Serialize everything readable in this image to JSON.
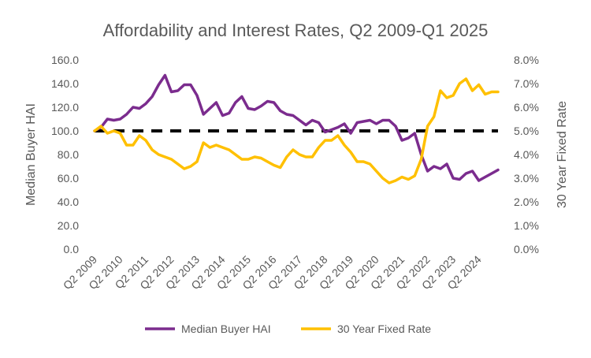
{
  "chart_data": {
    "type": "line",
    "title": "Affordability and Interest Rates, Q2 2009-Q1 2025",
    "ylabel": "Median Buyer HAI",
    "y2label": "30 Year Fixed Rate",
    "ylim": [
      0,
      160
    ],
    "y2lim": [
      0,
      8
    ],
    "yticks": [
      "0.0",
      "20.0",
      "40.0",
      "60.0",
      "80.0",
      "100.0",
      "120.0",
      "140.0",
      "160.0"
    ],
    "y2ticks": [
      "0.0%",
      "1.0%",
      "2.0%",
      "3.0%",
      "4.0%",
      "5.0%",
      "6.0%",
      "7.0%",
      "8.0%"
    ],
    "xticks": [
      "Q2 2009",
      "Q2 2010",
      "Q2 2011",
      "Q2 2012",
      "Q2 2013",
      "Q2 2014",
      "Q2 2015",
      "Q2 2016",
      "Q2 2017",
      "Q2 2018",
      "Q2 2019",
      "Q2 2020",
      "Q2 2021",
      "Q2 2022",
      "Q2 2023",
      "Q2 2024"
    ],
    "grid": false,
    "legend_position": "bottom",
    "reference_line": 100,
    "series": [
      {
        "name": "Median Buyer HAI",
        "axis": "left",
        "color": "#7B2C8E",
        "values": [
          100,
          103,
          110,
          109,
          110,
          114,
          120,
          119,
          123,
          129,
          139,
          147,
          133,
          134,
          139,
          139,
          130,
          114,
          119,
          124,
          113,
          115,
          124,
          129,
          119,
          118,
          121,
          125,
          124,
          117,
          114,
          113,
          109,
          105,
          109,
          107,
          99,
          101,
          103,
          106,
          98,
          107,
          108,
          109,
          106,
          109,
          109,
          104,
          92,
          94,
          98,
          80,
          66,
          70,
          68,
          72,
          60,
          59,
          64,
          66,
          58,
          61,
          64,
          67
        ]
      },
      {
        "name": "30 Year Fixed Rate",
        "axis": "right",
        "color": "#FFC000",
        "values": [
          5.0,
          5.2,
          4.9,
          5.0,
          4.9,
          4.4,
          4.4,
          4.8,
          4.6,
          4.2,
          4.0,
          3.9,
          3.8,
          3.6,
          3.4,
          3.5,
          3.7,
          4.5,
          4.3,
          4.4,
          4.3,
          4.2,
          4.0,
          3.8,
          3.8,
          3.9,
          3.85,
          3.7,
          3.55,
          3.45,
          3.9,
          4.2,
          4.0,
          3.9,
          3.9,
          4.3,
          4.6,
          4.6,
          4.8,
          4.4,
          4.1,
          3.7,
          3.7,
          3.6,
          3.3,
          3.0,
          2.8,
          2.9,
          3.05,
          2.95,
          3.1,
          3.8,
          5.2,
          5.6,
          6.7,
          6.4,
          6.5,
          7.0,
          7.2,
          6.7,
          6.95,
          6.55,
          6.65,
          6.65
        ]
      }
    ]
  }
}
